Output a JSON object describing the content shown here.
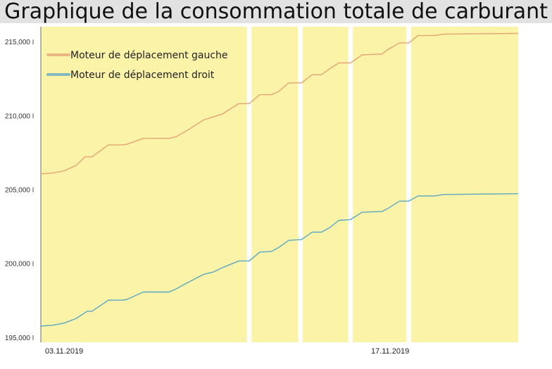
{
  "title": "Graphique de la consommation totale de carburant",
  "chart_data": {
    "type": "line",
    "title": "Graphique de la consommation totale de carburant",
    "xlabel": "",
    "ylabel": "",
    "x_tick_labels": [
      "03.11.2019",
      "17.11.2019"
    ],
    "y_ticks": [
      "195,000",
      "200,000",
      "205,000",
      "210,000",
      "215,000"
    ],
    "y_tick_values": [
      195000,
      200000,
      205000,
      210000,
      215000
    ],
    "ylim": [
      194850,
      216200
    ],
    "x_range_days": [
      0,
      20.5
    ],
    "x_tick_positions_days": [
      1,
      15
    ],
    "grid": false,
    "legend": "top-left",
    "band_color": "#fbf3a8",
    "background_bands_days": [
      [
        0,
        8.85
      ],
      [
        9.05,
        11.05
      ],
      [
        11.25,
        13.2
      ],
      [
        13.4,
        15.7
      ],
      [
        15.9,
        20.5
      ]
    ],
    "series": [
      {
        "name": "Moteur de déplacement gauche",
        "color": "#e4a576",
        "points": [
          [
            0,
            206250
          ],
          [
            0.5,
            206300
          ],
          [
            1,
            206450
          ],
          [
            1.5,
            206800
          ],
          [
            1.9,
            207400
          ],
          [
            2.2,
            207400
          ],
          [
            2.9,
            208200
          ],
          [
            3.5,
            208200
          ],
          [
            3.7,
            208250
          ],
          [
            4.4,
            208650
          ],
          [
            5.5,
            208650
          ],
          [
            5.8,
            208750
          ],
          [
            6.2,
            209100
          ],
          [
            7,
            209900
          ],
          [
            7.4,
            210100
          ],
          [
            7.8,
            210300
          ],
          [
            8.5,
            211000
          ],
          [
            8.95,
            211000
          ],
          [
            9.4,
            211600
          ],
          [
            9.9,
            211600
          ],
          [
            10.2,
            211800
          ],
          [
            10.65,
            212400
          ],
          [
            11.2,
            212400
          ],
          [
            11.65,
            212950
          ],
          [
            12.05,
            212950
          ],
          [
            12.4,
            213350
          ],
          [
            12.8,
            213750
          ],
          [
            13.3,
            213750
          ],
          [
            13.8,
            214300
          ],
          [
            14.65,
            214350
          ],
          [
            14.9,
            214650
          ],
          [
            15.4,
            215100
          ],
          [
            15.8,
            215100
          ],
          [
            16.2,
            215600
          ],
          [
            16.9,
            215600
          ],
          [
            17.3,
            215700
          ],
          [
            20.5,
            215750
          ]
        ]
      },
      {
        "name": "Moteur de déplacement droit",
        "color": "#5aa7c4",
        "points": [
          [
            0,
            195950
          ],
          [
            0.5,
            196000
          ],
          [
            1,
            196150
          ],
          [
            1.5,
            196450
          ],
          [
            2,
            196950
          ],
          [
            2.2,
            196950
          ],
          [
            2.9,
            197700
          ],
          [
            3.5,
            197700
          ],
          [
            3.7,
            197750
          ],
          [
            4.4,
            198250
          ],
          [
            5.5,
            198250
          ],
          [
            5.8,
            198450
          ],
          [
            6.2,
            198800
          ],
          [
            7,
            199450
          ],
          [
            7.4,
            199600
          ],
          [
            7.8,
            199900
          ],
          [
            8.5,
            200350
          ],
          [
            8.95,
            200350
          ],
          [
            9.4,
            200950
          ],
          [
            9.9,
            201000
          ],
          [
            10.2,
            201250
          ],
          [
            10.65,
            201750
          ],
          [
            11.2,
            201800
          ],
          [
            11.65,
            202300
          ],
          [
            12.05,
            202300
          ],
          [
            12.4,
            202600
          ],
          [
            12.8,
            203100
          ],
          [
            13.3,
            203150
          ],
          [
            13.8,
            203650
          ],
          [
            14.65,
            203700
          ],
          [
            14.9,
            203900
          ],
          [
            15.4,
            204400
          ],
          [
            15.8,
            204400
          ],
          [
            16.2,
            204750
          ],
          [
            16.9,
            204750
          ],
          [
            17.3,
            204850
          ],
          [
            20.5,
            204900
          ]
        ]
      }
    ]
  }
}
